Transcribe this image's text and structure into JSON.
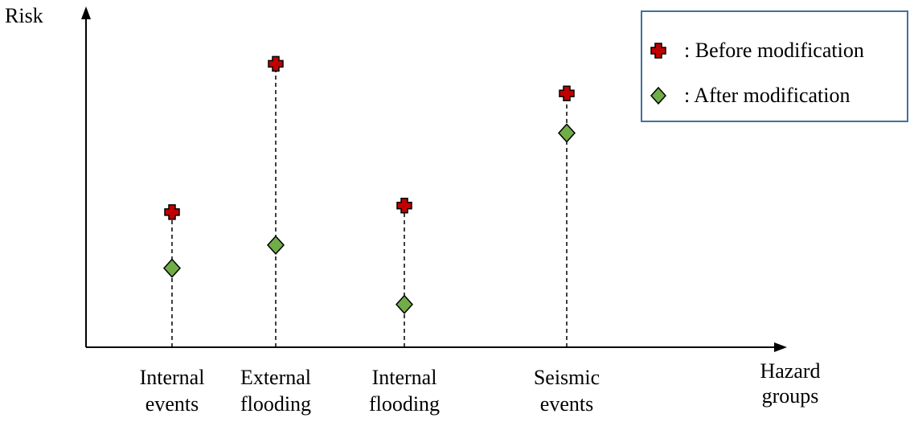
{
  "chart_data": {
    "type": "scatter",
    "ylabel": "Risk",
    "xlabel": [
      "Hazard",
      "groups"
    ],
    "categories": [
      [
        "Internal",
        "events"
      ],
      [
        "External",
        "flooding"
      ],
      [
        "Internal",
        "flooding"
      ],
      [
        "Seismic",
        "events"
      ]
    ],
    "series": [
      {
        "name": ": Before modification",
        "marker": "cross",
        "color": "#c00000",
        "values": [
          41,
          86,
          43,
          77
        ]
      },
      {
        "name": ": After modification",
        "marker": "diamond",
        "color": "#70ad47",
        "values": [
          24,
          31,
          13,
          65
        ]
      }
    ],
    "ylim": [
      0,
      100
    ],
    "grid": false,
    "legend_position": "top-right",
    "stems": "dashed"
  }
}
